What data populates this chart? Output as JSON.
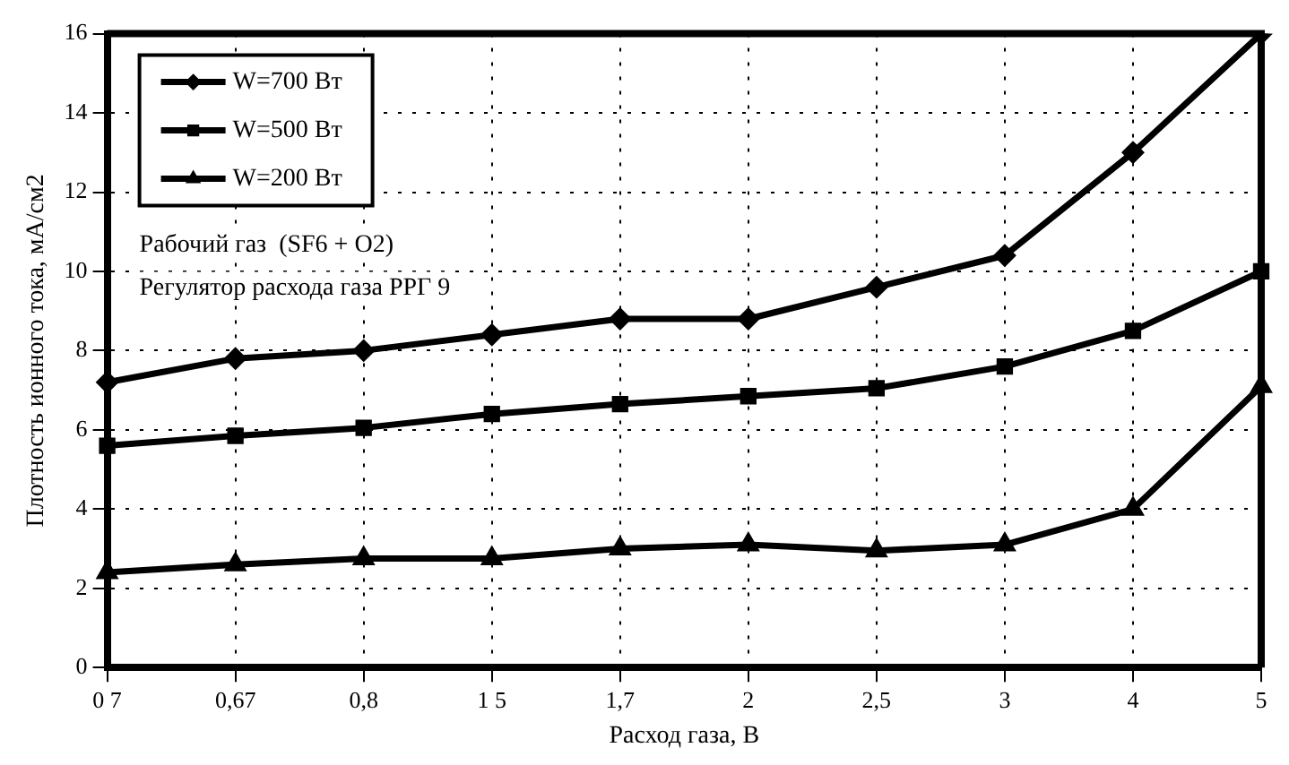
{
  "chart_data": {
    "type": "line",
    "xlabel": "Расход газа, В",
    "ylabel": "Плотность ионного тока, мА/см2",
    "categories": [
      "0 7",
      "0,67",
      "0,8",
      "1 5",
      "1,7",
      "2",
      "2,5",
      "3",
      "4",
      "5"
    ],
    "series": [
      {
        "name": "W=700 Вт",
        "color": "#000000",
        "marker": "diamond",
        "values": [
          7.2,
          7.8,
          8.0,
          8.4,
          8.8,
          8.8,
          9.6,
          10.4,
          13.0,
          16.0
        ]
      },
      {
        "name": "W=500 Вт",
        "color": "#000000",
        "marker": "square",
        "values": [
          5.6,
          5.85,
          6.05,
          6.4,
          6.65,
          6.85,
          7.05,
          7.6,
          8.5,
          10.0
        ]
      },
      {
        "name": "W=200 Вт",
        "color": "#000000",
        "marker": "triangle",
        "values": [
          2.4,
          2.6,
          2.75,
          2.75,
          3.0,
          3.1,
          2.95,
          3.1,
          4.0,
          7.1
        ]
      }
    ],
    "ylim": [
      0,
      16
    ],
    "yticks": [
      0,
      2,
      4,
      6,
      8,
      10,
      12,
      14,
      16
    ],
    "grid": true,
    "line_style": "solid",
    "legend": "top left",
    "annotations": [
      "Рабочий газ  (SF6 + O2)",
      "Регулятор расхода газа РРГ 9"
    ]
  }
}
